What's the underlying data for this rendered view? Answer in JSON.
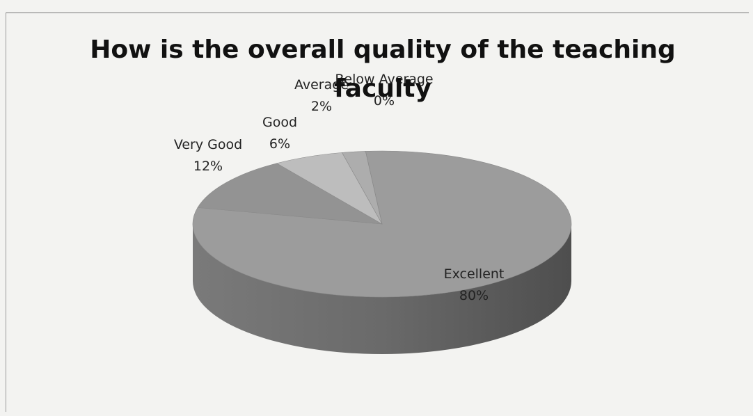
{
  "chart_data": {
    "type": "pie",
    "title": "How is the overall quality of the teaching faculty",
    "categories": [
      "Excellent",
      "Very Good",
      "Good",
      "Average",
      "Below Average"
    ],
    "values": [
      80,
      12,
      6,
      2,
      0
    ],
    "value_labels": [
      "80%",
      "12%",
      "6%",
      "2%",
      "0%"
    ],
    "colors": [
      "#9c9c9c",
      "#939393",
      "#bdbdbd",
      "#adadad",
      "#a5a5a5"
    ],
    "three_d": true
  }
}
